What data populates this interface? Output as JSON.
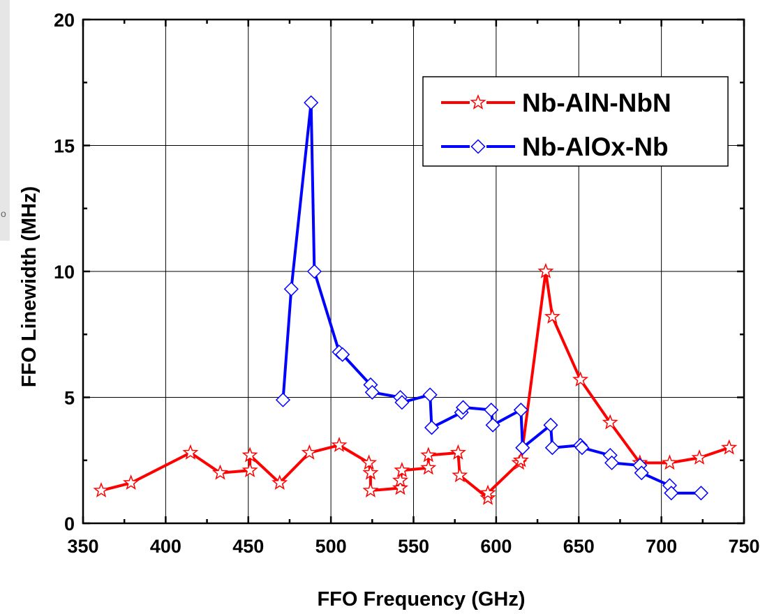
{
  "chart_data": {
    "type": "line",
    "xlabel": "FFO Frequency (GHz)",
    "ylabel": "FFO Linewidth (MHz)",
    "xlim": [
      350,
      750
    ],
    "ylim": [
      0,
      20
    ],
    "xticks": [
      350,
      400,
      450,
      500,
      550,
      600,
      650,
      700,
      750
    ],
    "yticks": [
      0,
      5,
      10,
      15,
      20
    ],
    "xtick_labels": [
      "350",
      "400",
      "450",
      "500",
      "550",
      "600",
      "650",
      "700",
      "750"
    ],
    "ytick_labels": [
      "0",
      "5",
      "10",
      "15",
      "20"
    ],
    "grid": true,
    "legend_position": "top-right",
    "series": [
      {
        "name": "Nb-AlN-NbN",
        "color": "#ff0000",
        "marker": "star",
        "points": [
          [
            361,
            1.3
          ],
          [
            379,
            1.6
          ],
          [
            415,
            2.8
          ],
          [
            433,
            2.0
          ],
          [
            451,
            2.1
          ],
          [
            451,
            2.7
          ],
          [
            469,
            1.6
          ],
          [
            487,
            2.8
          ],
          [
            505,
            3.1
          ],
          [
            523,
            2.4
          ],
          [
            524,
            2.0
          ],
          [
            524,
            1.3
          ],
          [
            542,
            1.4
          ],
          [
            542,
            1.7
          ],
          [
            543,
            2.1
          ],
          [
            559,
            2.2
          ],
          [
            559,
            2.7
          ],
          [
            577,
            2.8
          ],
          [
            578,
            1.9
          ],
          [
            595,
            1.0
          ],
          [
            595,
            1.2
          ],
          [
            614,
            2.4
          ],
          [
            615,
            2.5
          ],
          [
            630,
            10.0
          ],
          [
            634,
            8.2
          ],
          [
            651,
            5.7
          ],
          [
            669,
            4.0
          ],
          [
            687,
            2.4
          ],
          [
            705,
            2.4
          ],
          [
            723,
            2.6
          ],
          [
            741,
            3.0
          ]
        ]
      },
      {
        "name": "Nb-AlOx-Nb",
        "color": "#0000ff",
        "marker": "diamond",
        "points": [
          [
            471,
            4.9
          ],
          [
            476,
            9.3
          ],
          [
            488,
            16.7
          ],
          [
            490,
            10.0
          ],
          [
            505,
            6.8
          ],
          [
            507,
            6.7
          ],
          [
            524,
            5.5
          ],
          [
            525,
            5.2
          ],
          [
            542,
            5.0
          ],
          [
            543,
            4.8
          ],
          [
            560,
            5.1
          ],
          [
            561,
            3.8
          ],
          [
            579,
            4.4
          ],
          [
            580,
            4.6
          ],
          [
            597,
            4.5
          ],
          [
            598,
            3.9
          ],
          [
            615,
            4.5
          ],
          [
            616,
            3.0
          ],
          [
            633,
            3.9
          ],
          [
            634,
            3.0
          ],
          [
            651,
            3.1
          ],
          [
            652,
            3.0
          ],
          [
            669,
            2.7
          ],
          [
            670,
            2.4
          ],
          [
            687,
            2.3
          ],
          [
            688,
            2.0
          ],
          [
            705,
            1.5
          ],
          [
            706,
            1.2
          ],
          [
            724,
            1.2
          ]
        ]
      }
    ]
  }
}
